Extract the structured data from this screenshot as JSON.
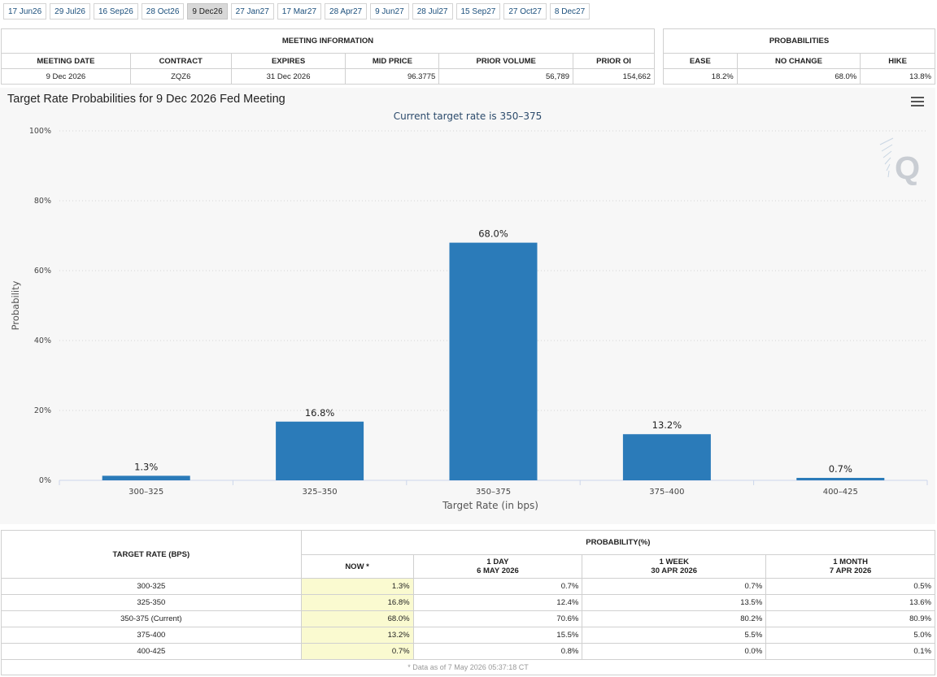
{
  "tabs": [
    "17 Jun26",
    "29 Jul26",
    "16 Sep26",
    "28 Oct26",
    "9 Dec26",
    "27 Jan27",
    "17 Mar27",
    "28 Apr27",
    "9 Jun27",
    "28 Jul27",
    "15 Sep27",
    "27 Oct27",
    "8 Dec27"
  ],
  "active_tab": 4,
  "meeting_info": {
    "section_title": "MEETING INFORMATION",
    "headers": [
      "MEETING DATE",
      "CONTRACT",
      "EXPIRES",
      "MID PRICE",
      "PRIOR VOLUME",
      "PRIOR OI"
    ],
    "row": [
      "9 Dec 2026",
      "ZQZ6",
      "31 Dec 2026",
      "96.3775",
      "56,789",
      "154,662"
    ]
  },
  "probabilities": {
    "section_title": "PROBABILITIES",
    "headers": [
      "EASE",
      "NO CHANGE",
      "HIKE"
    ],
    "row": [
      "18.2%",
      "68.0%",
      "13.8%"
    ]
  },
  "chart_data": {
    "type": "bar",
    "title": "Target Rate Probabilities for 9 Dec 2026 Fed Meeting",
    "subtitle": "Current target rate is 350–375",
    "xlabel": "Target Rate (in bps)",
    "ylabel": "Probability",
    "categories": [
      "300–325",
      "325–350",
      "350–375",
      "375–400",
      "400–425"
    ],
    "values": [
      1.3,
      16.8,
      68.0,
      13.2,
      0.7
    ],
    "data_labels": [
      "1.3%",
      "16.8%",
      "68.0%",
      "13.2%",
      "0.7%"
    ],
    "y_ticks": [
      "0%",
      "20%",
      "40%",
      "60%",
      "80%",
      "100%"
    ],
    "ylim": [
      0,
      100
    ],
    "bar_color": "#2b7bb9",
    "grid": true,
    "watermark": "Q"
  },
  "rate_table": {
    "col1_header": "TARGET RATE (BPS)",
    "group_header": "PROBABILITY(%)",
    "sub_headers": [
      {
        "line1": "NOW *",
        "line2": ""
      },
      {
        "line1": "1 DAY",
        "line2": "6 MAY 2026"
      },
      {
        "line1": "1 WEEK",
        "line2": "30 APR 2026"
      },
      {
        "line1": "1 MONTH",
        "line2": "7 APR 2026"
      }
    ],
    "rows": [
      [
        "300-325",
        "1.3%",
        "0.7%",
        "0.7%",
        "0.5%"
      ],
      [
        "325-350",
        "16.8%",
        "12.4%",
        "13.5%",
        "13.6%"
      ],
      [
        "350-375 (Current)",
        "68.0%",
        "70.6%",
        "80.2%",
        "80.9%"
      ],
      [
        "375-400",
        "13.2%",
        "15.5%",
        "5.5%",
        "5.0%"
      ],
      [
        "400-425",
        "0.7%",
        "0.8%",
        "0.0%",
        "0.1%"
      ]
    ],
    "footnote": "* Data as of 7 May 2026 05:37:18 CT"
  }
}
